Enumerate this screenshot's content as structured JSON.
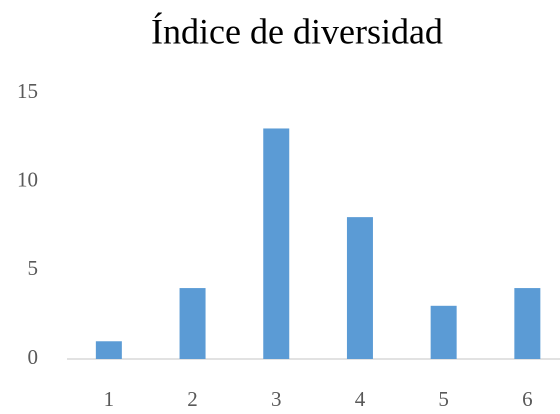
{
  "chart_data": {
    "type": "bar",
    "title": "Índice de diversidad",
    "categories": [
      "1",
      "2",
      "3",
      "4",
      "5",
      "6"
    ],
    "values": [
      1,
      4,
      13,
      8,
      3,
      4
    ],
    "color": "#5b9bd5",
    "ylim": [
      0,
      15
    ],
    "yticks": [
      0,
      5,
      10,
      15
    ],
    "grid": false
  }
}
